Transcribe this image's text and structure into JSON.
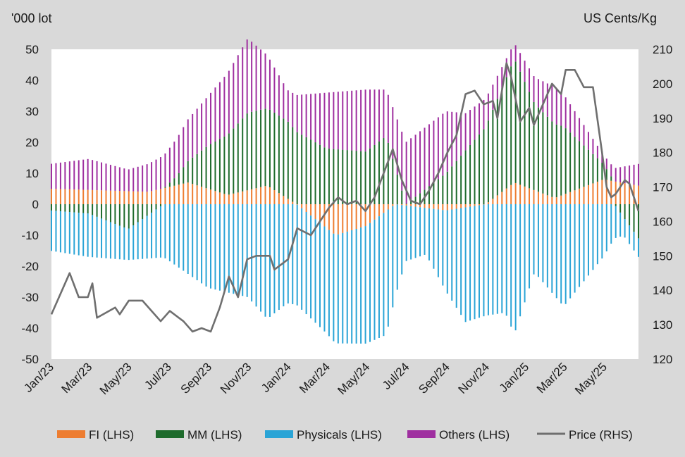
{
  "chart_data": {
    "type": "bar",
    "stacked": true,
    "secondary_series_type": "line",
    "left_unit": "'000 lot",
    "right_unit": "US Cents/Kg",
    "ylim_left": [
      -50,
      50
    ],
    "ylim_right": [
      120,
      210
    ],
    "left_ticks": [
      50,
      40,
      30,
      20,
      10,
      0,
      -10,
      -20,
      -30,
      -40,
      -50
    ],
    "right_ticks": [
      210,
      200,
      190,
      180,
      170,
      160,
      150,
      140,
      130,
      120
    ],
    "x_ticks": [
      "Jan/23",
      "Mar/23",
      "May/23",
      "Jul/23",
      "Sep/23",
      "Nov/23",
      "Jan/24",
      "Mar/24",
      "May/24",
      "Jul/24",
      "Sep/24",
      "Nov/24",
      "Jan/25",
      "Mar/25",
      "May/25"
    ],
    "x_start": "2023-01-03",
    "x_end": "2025-06-24",
    "grid": false,
    "legend_position": "bottom",
    "series_colors": {
      "fi": "#ed7d31",
      "mm": "#1e6b2c",
      "phys": "#2aa4d6",
      "oth": "#9f2fa0",
      "price": "#6f6f6f"
    },
    "legend": [
      {
        "label": "FI (LHS)",
        "color": "#ed7d31",
        "type": "bar"
      },
      {
        "label": "MM (LHS)",
        "color": "#1e6b2c",
        "type": "bar"
      },
      {
        "label": "Physicals (LHS)",
        "color": "#2aa4d6",
        "type": "bar"
      },
      {
        "label": "Others (LHS)",
        "color": "#9f2fa0",
        "type": "bar"
      },
      {
        "label": "Price (RHS)",
        "color": "#6f6f6f",
        "type": "line"
      }
    ],
    "series": [
      {
        "name": "FI (LHS)",
        "key": "fi",
        "anchors": [
          [
            "2023-01-01",
            5
          ],
          [
            "2023-06-01",
            4
          ],
          [
            "2023-08-01",
            7
          ],
          [
            "2023-10-01",
            3
          ],
          [
            "2023-12-01",
            6
          ],
          [
            "2024-01-15",
            0
          ],
          [
            "2024-03-15",
            -10
          ],
          [
            "2024-05-01",
            -7
          ],
          [
            "2024-06-15",
            0
          ],
          [
            "2024-09-01",
            -2
          ],
          [
            "2024-11-01",
            0
          ],
          [
            "2024-12-15",
            7
          ],
          [
            "2025-02-15",
            2
          ],
          [
            "2025-05-01",
            8
          ],
          [
            "2025-06-24",
            6
          ]
        ]
      },
      {
        "name": "MM (LHS)",
        "key": "mm",
        "anchors": [
          [
            "2023-01-01",
            -2
          ],
          [
            "2023-03-01",
            -3
          ],
          [
            "2023-05-01",
            -8
          ],
          [
            "2023-07-15",
            3
          ],
          [
            "2023-09-01",
            14
          ],
          [
            "2023-11-01",
            25
          ],
          [
            "2024-01-01",
            25
          ],
          [
            "2024-03-01",
            18
          ],
          [
            "2024-05-01",
            17
          ],
          [
            "2024-06-01",
            22
          ],
          [
            "2024-07-01",
            0
          ],
          [
            "2024-09-01",
            10
          ],
          [
            "2024-11-01",
            25
          ],
          [
            "2024-12-15",
            40
          ],
          [
            "2025-01-15",
            28
          ],
          [
            "2025-03-01",
            22
          ],
          [
            "2025-05-01",
            5
          ],
          [
            "2025-06-24",
            -11
          ]
        ]
      },
      {
        "name": "Physicals (LHS)",
        "key": "phys",
        "anchors": [
          [
            "2023-01-01",
            -13
          ],
          [
            "2023-03-01",
            -14
          ],
          [
            "2023-05-01",
            -10
          ],
          [
            "2023-07-01",
            -18
          ],
          [
            "2023-09-01",
            -27
          ],
          [
            "2023-11-01",
            -30
          ],
          [
            "2023-12-01",
            -37
          ],
          [
            "2024-01-01",
            -32
          ],
          [
            "2024-03-01",
            -34
          ],
          [
            "2024-05-01",
            -38
          ],
          [
            "2024-06-01",
            -40
          ],
          [
            "2024-07-01",
            -18
          ],
          [
            "2024-08-01",
            -15
          ],
          [
            "2024-10-01",
            -37
          ],
          [
            "2024-12-01",
            -35
          ],
          [
            "2024-12-15",
            -42
          ],
          [
            "2025-01-15",
            -22
          ],
          [
            "2025-03-01",
            -33
          ],
          [
            "2025-05-01",
            -17
          ],
          [
            "2025-06-01",
            -6
          ],
          [
            "2025-06-24",
            -6
          ]
        ]
      },
      {
        "name": "Others (LHS)",
        "key": "oth",
        "anchors": [
          [
            "2023-01-01",
            8
          ],
          [
            "2023-03-01",
            10
          ],
          [
            "2023-05-01",
            7
          ],
          [
            "2023-07-01",
            11
          ],
          [
            "2023-09-01",
            16
          ],
          [
            "2023-11-01",
            24
          ],
          [
            "2024-01-01",
            10
          ],
          [
            "2024-03-01",
            18
          ],
          [
            "2024-05-01",
            20
          ],
          [
            "2024-06-01",
            15
          ],
          [
            "2024-07-01",
            20
          ],
          [
            "2024-09-01",
            20
          ],
          [
            "2024-10-01",
            12
          ],
          [
            "2024-12-15",
            5
          ],
          [
            "2025-02-15",
            12
          ],
          [
            "2025-05-01",
            3
          ],
          [
            "2025-06-24",
            7
          ]
        ]
      },
      {
        "name": "Price (RHS)",
        "key": "price",
        "points": [
          [
            "2023-01-03",
            133
          ],
          [
            "2023-01-31",
            145
          ],
          [
            "2023-02-14",
            138
          ],
          [
            "2023-02-28",
            138
          ],
          [
            "2023-03-07",
            142
          ],
          [
            "2023-03-14",
            132
          ],
          [
            "2023-04-11",
            135
          ],
          [
            "2023-04-18",
            133
          ],
          [
            "2023-05-02",
            137
          ],
          [
            "2023-05-23",
            137
          ],
          [
            "2023-06-06",
            134
          ],
          [
            "2023-06-20",
            131
          ],
          [
            "2023-07-04",
            134
          ],
          [
            "2023-07-25",
            131
          ],
          [
            "2023-08-08",
            128
          ],
          [
            "2023-08-22",
            129
          ],
          [
            "2023-09-05",
            128
          ],
          [
            "2023-09-19",
            135
          ],
          [
            "2023-10-03",
            144
          ],
          [
            "2023-10-17",
            138
          ],
          [
            "2023-10-31",
            149
          ],
          [
            "2023-11-14",
            150
          ],
          [
            "2023-12-05",
            150
          ],
          [
            "2023-12-12",
            146
          ],
          [
            "2024-01-02",
            149
          ],
          [
            "2024-01-16",
            158
          ],
          [
            "2024-02-06",
            156
          ],
          [
            "2024-02-20",
            160
          ],
          [
            "2024-03-05",
            164
          ],
          [
            "2024-03-19",
            167
          ],
          [
            "2024-04-02",
            165
          ],
          [
            "2024-04-16",
            166
          ],
          [
            "2024-04-30",
            163
          ],
          [
            "2024-05-14",
            167
          ],
          [
            "2024-05-28",
            174
          ],
          [
            "2024-06-11",
            181
          ],
          [
            "2024-06-25",
            172
          ],
          [
            "2024-07-09",
            166
          ],
          [
            "2024-07-23",
            165
          ],
          [
            "2024-08-06",
            169
          ],
          [
            "2024-08-20",
            174
          ],
          [
            "2024-09-03",
            180
          ],
          [
            "2024-09-17",
            185
          ],
          [
            "2024-10-01",
            197
          ],
          [
            "2024-10-15",
            198
          ],
          [
            "2024-10-29",
            194
          ],
          [
            "2024-11-12",
            195
          ],
          [
            "2024-11-19",
            190
          ],
          [
            "2024-12-03",
            206
          ],
          [
            "2024-12-10",
            202
          ],
          [
            "2024-12-24",
            189
          ],
          [
            "2025-01-07",
            193
          ],
          [
            "2025-01-14",
            188
          ],
          [
            "2025-01-28",
            194
          ],
          [
            "2025-02-11",
            200
          ],
          [
            "2025-02-25",
            197
          ],
          [
            "2025-03-04",
            204
          ],
          [
            "2025-03-18",
            204
          ],
          [
            "2025-04-01",
            199
          ],
          [
            "2025-04-15",
            199
          ],
          [
            "2025-04-29",
            180
          ],
          [
            "2025-05-06",
            170
          ],
          [
            "2025-05-13",
            167
          ],
          [
            "2025-05-20",
            168
          ],
          [
            "2025-06-03",
            172
          ],
          [
            "2025-06-10",
            171
          ],
          [
            "2025-06-24",
            163
          ]
        ]
      }
    ]
  }
}
